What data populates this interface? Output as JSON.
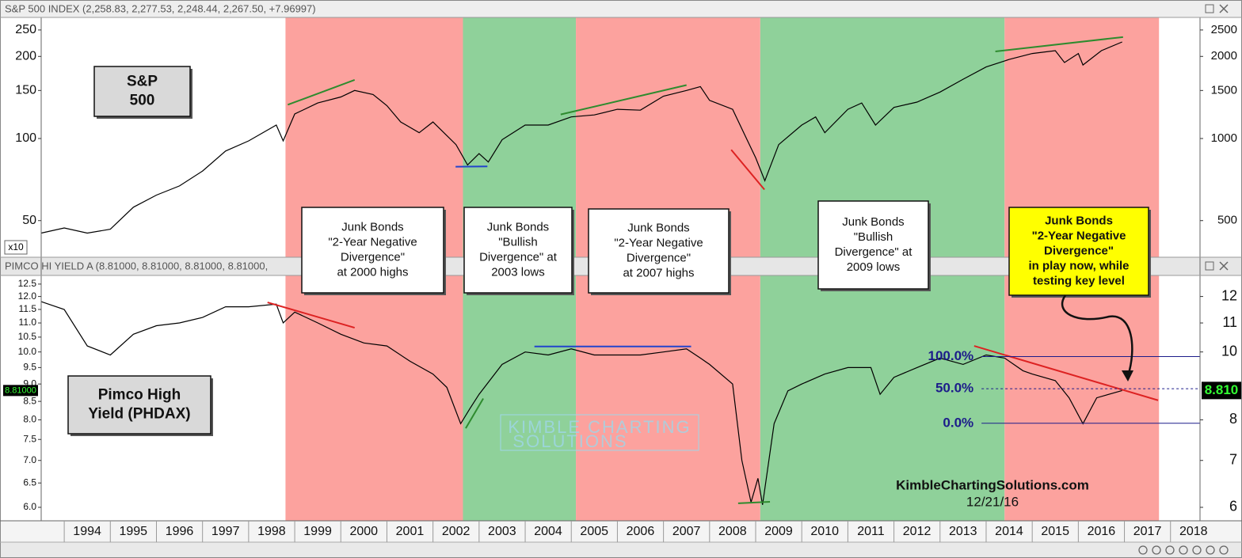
{
  "chart_data": [
    {
      "type": "line",
      "title": "S&P 500 INDEX (2,258.83, 2,277.53, 2,248.44, 2,267.50, +7.96997)",
      "color": "#000000",
      "log_scale": true,
      "x": [
        1993.5,
        1994,
        1994.5,
        1995,
        1995.5,
        1996,
        1996.5,
        1997,
        1997.5,
        1998,
        1998.6,
        1998.75,
        1999,
        1999.5,
        2000,
        2000.3,
        2000.7,
        2001,
        2001.3,
        2001.7,
        2002,
        2002.5,
        2002.75,
        2003,
        2003.2,
        2003.5,
        2004,
        2004.5,
        2005,
        2005.5,
        2006,
        2006.5,
        2007,
        2007.5,
        2007.8,
        2008,
        2008.5,
        2008.8,
        2009,
        2009.2,
        2009.5,
        2010,
        2010.3,
        2010.5,
        2011,
        2011.3,
        2011.6,
        2012,
        2012.5,
        2013,
        2013.5,
        2014,
        2014.5,
        2015,
        2015.5,
        2015.7,
        2016,
        2016.1,
        2016.5,
        2016.95
      ],
      "values": [
        450,
        470,
        450,
        465,
        560,
        620,
        670,
        760,
        900,
        980,
        1120,
        980,
        1230,
        1350,
        1420,
        1500,
        1450,
        1320,
        1150,
        1050,
        1150,
        950,
        800,
        880,
        820,
        990,
        1120,
        1120,
        1200,
        1220,
        1280,
        1270,
        1430,
        1500,
        1550,
        1380,
        1280,
        1000,
        850,
        700,
        950,
        1120,
        1200,
        1050,
        1280,
        1350,
        1120,
        1300,
        1360,
        1480,
        1650,
        1830,
        1950,
        2050,
        2100,
        1900,
        2050,
        1860,
        2100,
        2260
      ],
      "xlim": [
        1993.5,
        2018.64
      ],
      "ylim": [
        367,
        2780
      ],
      "yticks": [
        500,
        1000,
        1500,
        2000,
        2500
      ],
      "y2lim": [
        36.7,
        278
      ],
      "y2ticks": [
        50,
        100,
        150,
        200,
        250
      ],
      "y2label": "x10",
      "trendlines": [
        {
          "color": "#2e8b2e",
          "x": [
            1998.85,
            2000.3
          ],
          "y": [
            1330,
            1640
          ]
        },
        {
          "color": "#2244cc",
          "x": [
            2002.49,
            2003.18
          ],
          "y": [
            788,
            790
          ]
        },
        {
          "color": "#2e8b2e",
          "x": [
            2004.77,
            2007.5
          ],
          "y": [
            1225,
            1570
          ]
        },
        {
          "color": "#dd2222",
          "x": [
            2008.47,
            2009.19
          ],
          "y": [
            909,
            650
          ]
        },
        {
          "color": "#2e8b2e",
          "x": [
            2014.2,
            2016.97
          ],
          "y": [
            2085,
            2355
          ]
        }
      ]
    },
    {
      "type": "line",
      "title": "PIMCO HI YIELD A (8.81000, 8.81000, 8.81000, 8.81000,",
      "color": "#000000",
      "log_scale": true,
      "x": [
        1993.5,
        1994,
        1994.5,
        1995,
        1995.5,
        1996,
        1996.5,
        1997,
        1997.5,
        1998,
        1998.6,
        1998.75,
        1999,
        1999.5,
        2000,
        2000.5,
        2001,
        2001.5,
        2002,
        2002.3,
        2002.6,
        2002.8,
        2003,
        2003.5,
        2004,
        2004.5,
        2005,
        2005.5,
        2006,
        2006.5,
        2007,
        2007.5,
        2007.8,
        2008,
        2008.5,
        2008.7,
        2008.9,
        2009.05,
        2009.15,
        2009.4,
        2009.7,
        2010,
        2010.5,
        2011,
        2011.5,
        2011.7,
        2012,
        2012.5,
        2013,
        2013.5,
        2014,
        2014.4,
        2014.8,
        2015,
        2015.5,
        2015.8,
        2016.1,
        2016.4,
        2016.95
      ],
      "values": [
        11.8,
        11.5,
        10.2,
        9.9,
        10.6,
        10.9,
        11.0,
        11.2,
        11.6,
        11.6,
        11.7,
        11.0,
        11.4,
        11.0,
        10.6,
        10.3,
        10.2,
        9.7,
        9.3,
        8.9,
        7.9,
        8.3,
        8.7,
        9.6,
        10.0,
        9.9,
        10.1,
        9.9,
        9.9,
        9.9,
        10.0,
        10.1,
        9.8,
        9.6,
        9.0,
        7.0,
        6.1,
        6.6,
        6.05,
        7.9,
        8.8,
        9.0,
        9.3,
        9.5,
        9.5,
        8.7,
        9.2,
        9.5,
        9.8,
        9.6,
        9.9,
        9.8,
        9.4,
        9.3,
        9.1,
        8.6,
        7.9,
        8.6,
        8.81
      ],
      "xlim": [
        1993.5,
        2018.64
      ],
      "ylim": [
        5.74,
        12.86
      ],
      "yticks": [
        {
          "value": 6,
          "label": "6.0"
        },
        6.5,
        {
          "value": 7,
          "label": "7.0"
        },
        7.5,
        {
          "value": 8,
          "label": "8.0"
        },
        8.5,
        {
          "value": 9,
          "label": "9.0"
        },
        9.5,
        {
          "value": 10,
          "label": "10.0"
        },
        10.5,
        {
          "value": 11,
          "label": "11.0"
        },
        11.5,
        {
          "value": 12,
          "label": "12.0"
        },
        12.5
      ],
      "y2lim": [
        5.74,
        12.86
      ],
      "y2ticks": [
        6,
        7,
        8,
        10,
        11,
        12
      ],
      "xticks": [
        1994,
        1995,
        1996,
        1997,
        1998,
        1999,
        2000,
        2001,
        2002,
        2003,
        2004,
        2005,
        2006,
        2007,
        2008,
        2009,
        2010,
        2011,
        2012,
        2013,
        2014,
        2015,
        2016,
        2017,
        2018
      ],
      "price_markers": [
        {
          "value": 8.81,
          "label": "8.81000",
          "side": "left"
        },
        {
          "value": 8.81,
          "label": "8.810",
          "side": "right"
        }
      ],
      "fib_start": 2013.9,
      "fib_levels": [
        {
          "value": 100,
          "label": "100.0%",
          "price": 9.85
        },
        {
          "value": 50,
          "label": "50.0%",
          "price": 8.86
        },
        {
          "value": 0,
          "label": "0.0%",
          "price": 7.91
        }
      ],
      "trendlines": [
        {
          "color": "#dd2222",
          "x": [
            1998.41,
            2000.3
          ],
          "y": [
            11.77,
            10.83
          ]
        },
        {
          "color": "#2e8b2e",
          "x": [
            2002.71,
            2003.09
          ],
          "y": [
            7.78,
            8.58
          ]
        },
        {
          "color": "#2244cc",
          "x": [
            2004.2,
            2007.6
          ],
          "y": [
            10.18,
            10.18
          ]
        },
        {
          "color": "#2e8b2e",
          "x": [
            2008.62,
            2009.31
          ],
          "y": [
            6.08,
            6.11
          ]
        },
        {
          "color": "#dd2222",
          "x": [
            2013.74,
            2017.73
          ],
          "y": [
            10.2,
            8.53
          ]
        }
      ]
    }
  ],
  "regions": [
    {
      "start": 1998.8,
      "end": 2002.65,
      "color": "#fca29e"
    },
    {
      "start": 2002.65,
      "end": 2005.1,
      "color": "#8fd19a"
    },
    {
      "start": 2005.1,
      "end": 2009.1,
      "color": "#fca29e"
    },
    {
      "start": 2009.1,
      "end": 2014.4,
      "color": "#8fd19a"
    },
    {
      "start": 2014.4,
      "end": 2017.75,
      "color": "#fca29e"
    }
  ],
  "annotations": [
    {
      "lines": [
        "Junk Bonds",
        "\"2-Year Negative",
        "Divergence\"",
        "at 2000 highs"
      ],
      "fill": "#ffffff"
    },
    {
      "lines": [
        "Junk Bonds",
        "\"Bullish",
        "Divergence\" at",
        "2003 lows"
      ],
      "fill": "#ffffff"
    },
    {
      "lines": [
        "Junk Bonds",
        "\"2-Year Negative",
        "Divergence\"",
        "at 2007 highs"
      ],
      "fill": "#ffffff"
    },
    {
      "lines": [
        "Junk Bonds",
        "\"Bullish",
        "Divergence\" at",
        "2009 lows"
      ],
      "fill": "#ffffff"
    },
    {
      "lines": [
        "Junk Bonds",
        "\"2-Year Negative",
        "Divergence\"",
        "in play now, while",
        "testing key level"
      ],
      "fill": "#ffff00"
    }
  ],
  "labels": [
    {
      "lines": [
        "S&P",
        "500"
      ]
    },
    {
      "lines": [
        "Pimco High",
        "Yield (PHDAX)"
      ]
    }
  ],
  "watermark": [
    "KIMBLE CHARTING",
    "SOLUTIONS"
  ],
  "site": "KimbleChartingSolutions.com",
  "date": "12/21/16"
}
